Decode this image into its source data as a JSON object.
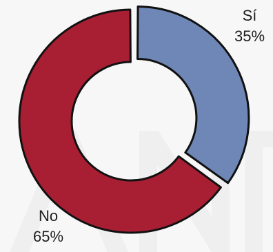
{
  "chart_data": {
    "type": "pie",
    "variant": "donut",
    "title": "",
    "legend": "none",
    "slices": [
      {
        "label": "Sí",
        "value": 35,
        "value_label": "35%",
        "color": "#6f87b7",
        "exploded": true
      },
      {
        "label": "No",
        "value": 65,
        "value_label": "65%",
        "color": "#a81f33",
        "exploded": false
      }
    ]
  },
  "watermark": {
    "color": "#efefef"
  }
}
